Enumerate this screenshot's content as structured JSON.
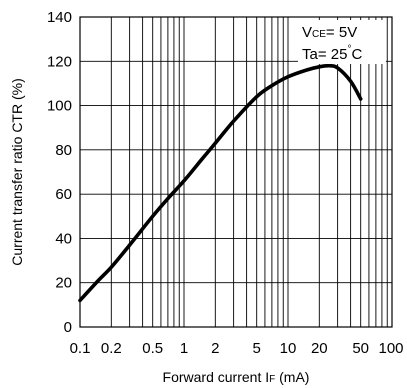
{
  "chart_data": {
    "type": "line",
    "xscale": "log",
    "xlim": [
      0.1,
      100
    ],
    "ylim": [
      0,
      140
    ],
    "grid": true,
    "xlabel": {
      "main": "Forward current I",
      "sub": "F",
      "unit": " (mA)"
    },
    "ylabel": "Current transfer ratio CTR (%)",
    "x_ticks": [
      0.1,
      0.2,
      0.5,
      1,
      2,
      5,
      10,
      20,
      50,
      100
    ],
    "x_tick_labels": [
      "0.1",
      "0.2",
      "0.5",
      "1",
      "2",
      "5",
      "10",
      "20",
      "50",
      "100"
    ],
    "y_ticks": [
      0,
      20,
      40,
      60,
      80,
      100,
      120,
      140
    ],
    "y_tick_labels": [
      "0",
      "20",
      "40",
      "60",
      "80",
      "100",
      "120",
      "140"
    ],
    "annotations": {
      "vce": {
        "prefix": "V",
        "sub": "CE",
        "suffix": "= 5V"
      },
      "ta": {
        "prefix": "Ta= 25",
        "sup": "°",
        "suffix": "C"
      }
    },
    "series": [
      {
        "x": [
          0.1,
          0.15,
          0.2,
          0.3,
          0.5,
          0.7,
          1,
          1.5,
          2,
          3,
          5,
          7,
          10,
          15,
          20,
          25,
          30,
          40,
          50
        ],
        "y": [
          12,
          21,
          27,
          37,
          50,
          58,
          66,
          76,
          83,
          93,
          104,
          109,
          113,
          116,
          117.5,
          118,
          117,
          111,
          103
        ]
      }
    ]
  }
}
